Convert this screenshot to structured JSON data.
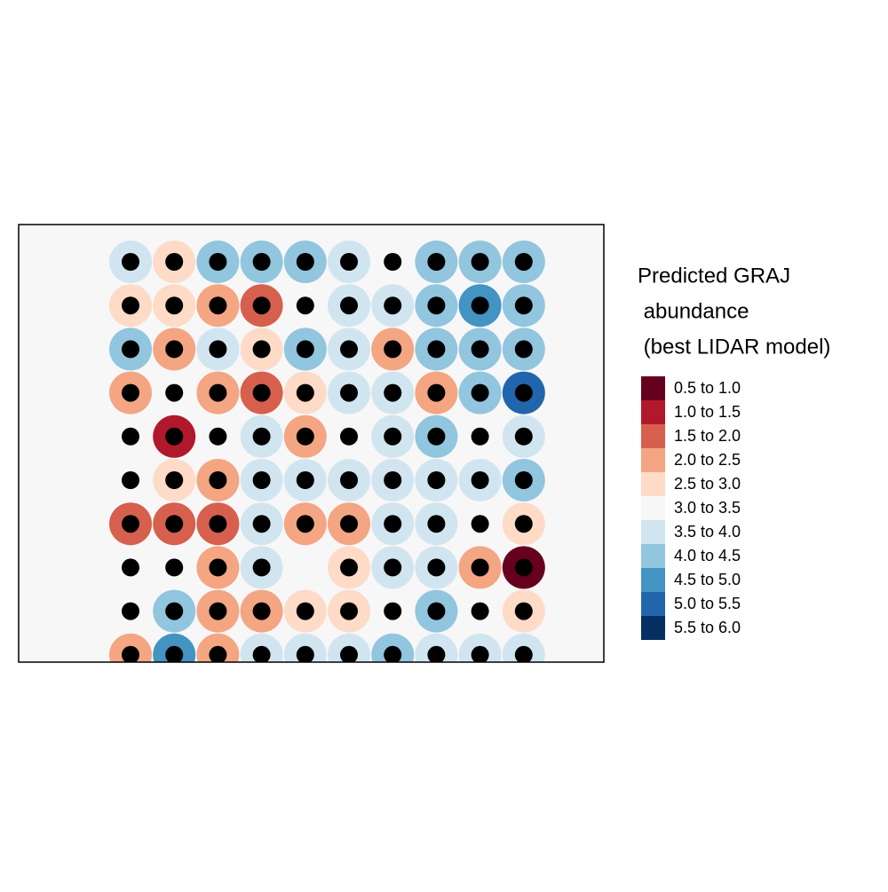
{
  "chart_data": {
    "type": "point-map",
    "legend_title": [
      "Predicted GRAJ",
      " abundance",
      " (best LIDAR model)"
    ],
    "classes": [
      {
        "label": "0.5 to 1.0",
        "min": 0.5,
        "max": 1.0,
        "color": "#67001f"
      },
      {
        "label": "1.0 to 1.5",
        "min": 1.0,
        "max": 1.5,
        "color": "#b2182b"
      },
      {
        "label": "1.5 to 2.0",
        "min": 1.5,
        "max": 2.0,
        "color": "#d6604d"
      },
      {
        "label": "2.0 to 2.5",
        "min": 2.0,
        "max": 2.5,
        "color": "#f4a582"
      },
      {
        "label": "2.5 to 3.0",
        "min": 2.5,
        "max": 3.0,
        "color": "#fddbc7"
      },
      {
        "label": "3.0 to 3.5",
        "min": 3.0,
        "max": 3.5,
        "color": "#f7f7f7"
      },
      {
        "label": "3.5 to 4.0",
        "min": 3.5,
        "max": 4.0,
        "color": "#d1e5f0"
      },
      {
        "label": "4.0 to 4.5",
        "min": 4.0,
        "max": 4.5,
        "color": "#92c5de"
      },
      {
        "label": "4.5 to 5.0",
        "min": 4.5,
        "max": 5.0,
        "color": "#4393c3"
      },
      {
        "label": "5.0 to 5.5",
        "min": 5.0,
        "max": 5.5,
        "color": "#2166ac"
      },
      {
        "label": "5.5 to 6.0",
        "min": 5.5,
        "max": 6.0,
        "color": "#053061"
      }
    ],
    "background_value": 3.2,
    "values": [
      [
        3.7,
        2.7,
        4.2,
        4.2,
        4.3,
        3.7,
        3.2,
        4.2,
        4.2,
        4.2
      ],
      [
        2.7,
        2.7,
        2.3,
        1.8,
        3.2,
        3.8,
        3.7,
        4.2,
        4.8,
        4.2
      ],
      [
        4.2,
        2.2,
        3.7,
        2.7,
        4.2,
        3.7,
        2.2,
        4.2,
        4.2,
        4.2
      ],
      [
        2.0,
        3.2,
        2.2,
        1.9,
        2.7,
        3.7,
        3.7,
        2.0,
        4.2,
        5.0
      ],
      [
        3.2,
        1.0,
        3.2,
        3.8,
        2.2,
        3.3,
        3.7,
        4.2,
        3.2,
        3.7
      ],
      [
        3.2,
        2.7,
        2.2,
        3.8,
        3.7,
        3.7,
        3.7,
        3.8,
        3.8,
        4.2
      ],
      [
        1.8,
        1.8,
        1.8,
        3.7,
        2.2,
        2.2,
        3.7,
        3.7,
        3.2,
        2.7
      ],
      [
        3.2,
        3.2,
        2.2,
        3.7,
        null,
        2.7,
        3.7,
        3.7,
        2.2,
        0.8
      ],
      [
        3.2,
        4.2,
        2.2,
        2.2,
        2.7,
        2.7,
        3.2,
        4.2,
        3.3,
        2.7
      ],
      [
        2.2,
        4.6,
        2.0,
        3.7,
        3.7,
        3.8,
        4.2,
        3.8,
        3.8,
        3.7
      ]
    ]
  }
}
